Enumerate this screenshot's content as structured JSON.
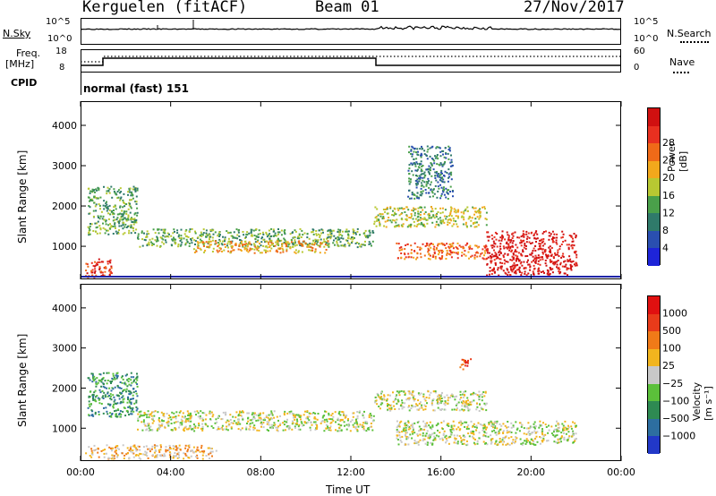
{
  "header": {
    "station": "Kerguelen (fitACF)",
    "beam": "Beam 01",
    "date": "27/Nov/2017"
  },
  "top_panels": {
    "nsky_label": "N.Sky",
    "nsearch_label": "N.Search",
    "noise_ticks_left": [
      "10^5",
      "10^0"
    ],
    "noise_ticks_right": [
      "10^5",
      "10^0"
    ],
    "freq_label_line1": "Freq.",
    "freq_label_line2": "[MHz]",
    "freq_ticks": [
      "18",
      "8"
    ],
    "nave_label": "Nave",
    "nave_ticks": [
      "60",
      "0"
    ],
    "cpid_label": "CPID",
    "cpid_value": "normal (fast) 151"
  },
  "colorbars": {
    "power": {
      "label": "Power [dB]",
      "ticks": [
        "4",
        "8",
        "12",
        "16",
        "20",
        "24",
        "28"
      ],
      "colors": [
        "#1e24d8",
        "#2a4fb0",
        "#2f7a6a",
        "#4aa04a",
        "#b8c832",
        "#f2a81c",
        "#f06a18",
        "#e83020",
        "#d01010"
      ]
    },
    "velocity": {
      "label": "Velocity [m s⁻¹]",
      "ticks": [
        "1000",
        "500",
        "100",
        "25",
        "−25",
        "−100",
        "−500",
        "−1000"
      ],
      "colors": [
        "#2238c8",
        "#2d6ea0",
        "#2e8a52",
        "#5bc03a",
        "#c8c8c8",
        "#f2b51e",
        "#f07a18",
        "#e83b1a",
        "#e01010"
      ]
    }
  },
  "chart_data": [
    {
      "type": "heatmap",
      "title": "Power",
      "xlabel": "",
      "ylabel": "Slant Range [km]",
      "x_ticks": [
        "00:00",
        "04:00",
        "08:00",
        "12:00",
        "16:00",
        "20:00",
        "00:00"
      ],
      "y_ticks": [
        "1000",
        "2000",
        "3000",
        "4000"
      ],
      "xlim_hours": [
        0,
        24
      ],
      "ylim_km": [
        180,
        4600
      ],
      "regions": [
        {
          "x0": 0.2,
          "x1": 1.4,
          "y0": 250,
          "y1": 700,
          "level": 7
        },
        {
          "x0": 0.3,
          "x1": 2.5,
          "y0": 1300,
          "y1": 2500,
          "level": 3
        },
        {
          "x0": 2.5,
          "x1": 13.0,
          "y0": 1000,
          "y1": 1450,
          "level": 3
        },
        {
          "x0": 5.0,
          "x1": 11.0,
          "y0": 850,
          "y1": 1150,
          "level": 5
        },
        {
          "x0": 13.0,
          "x1": 18.0,
          "y0": 1500,
          "y1": 2000,
          "level": 4
        },
        {
          "x0": 14.0,
          "x1": 18.0,
          "y0": 700,
          "y1": 1100,
          "level": 6
        },
        {
          "x0": 18.0,
          "x1": 22.0,
          "y0": 300,
          "y1": 1400,
          "level": 8
        },
        {
          "x0": 14.5,
          "x1": 16.5,
          "y0": 2200,
          "y1": 3500,
          "level": 2
        }
      ]
    },
    {
      "type": "heatmap",
      "title": "Velocity",
      "xlabel": "Time UT",
      "ylabel": "Slant Range [km]",
      "x_ticks": [
        "00:00",
        "04:00",
        "08:00",
        "12:00",
        "16:00",
        "20:00",
        "00:00"
      ],
      "y_ticks": [
        "1000",
        "2000",
        "3000",
        "4000"
      ],
      "xlim_hours": [
        0,
        24
      ],
      "ylim_km": [
        180,
        4600
      ],
      "regions": [
        {
          "x0": 0.3,
          "x1": 2.5,
          "y0": 1300,
          "y1": 2400,
          "level": 2
        },
        {
          "x0": 2.5,
          "x1": 13.0,
          "y0": 950,
          "y1": 1450,
          "level": 4
        },
        {
          "x0": 13.0,
          "x1": 18.0,
          "y0": 1450,
          "y1": 1950,
          "level": 4
        },
        {
          "x0": 14.0,
          "x1": 22.0,
          "y0": 600,
          "y1": 1200,
          "level": 4
        },
        {
          "x0": 16.8,
          "x1": 17.3,
          "y0": 2450,
          "y1": 2750,
          "level": 7
        },
        {
          "x0": 0.2,
          "x1": 6.0,
          "y0": 250,
          "y1": 600,
          "level": 5
        }
      ]
    }
  ]
}
